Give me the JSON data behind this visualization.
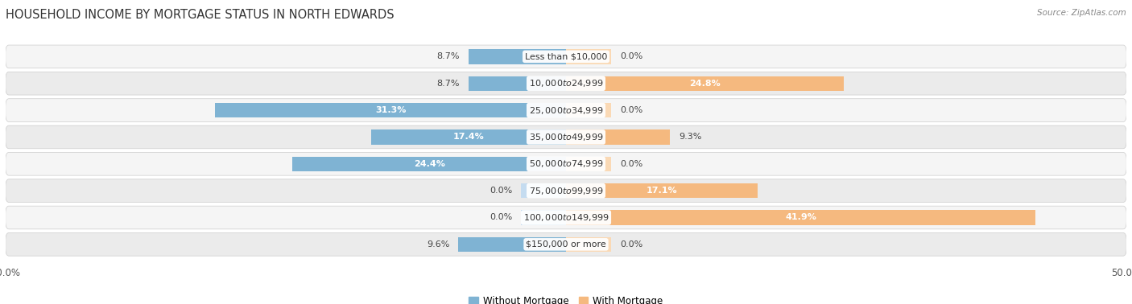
{
  "title": "HOUSEHOLD INCOME BY MORTGAGE STATUS IN NORTH EDWARDS",
  "source": "Source: ZipAtlas.com",
  "categories": [
    "Less than $10,000",
    "$10,000 to $24,999",
    "$25,000 to $34,999",
    "$35,000 to $49,999",
    "$50,000 to $74,999",
    "$75,000 to $99,999",
    "$100,000 to $149,999",
    "$150,000 or more"
  ],
  "without_mortgage": [
    8.7,
    8.7,
    31.3,
    17.4,
    24.4,
    0.0,
    0.0,
    9.6
  ],
  "with_mortgage": [
    0.0,
    24.8,
    0.0,
    9.3,
    0.0,
    17.1,
    41.9,
    0.0
  ],
  "color_without": "#7FB3D3",
  "color_with": "#F5B97F",
  "color_without_stub": "#C5DCF0",
  "color_with_stub": "#FAD9B5",
  "axis_limit": 50.0,
  "background_color": "#ffffff",
  "row_bg_even": "#f5f5f5",
  "row_bg_odd": "#ebebeb",
  "label_fontsize": 8.0,
  "title_fontsize": 10.5,
  "legend_fontsize": 8.5,
  "stub_size": 4.0
}
